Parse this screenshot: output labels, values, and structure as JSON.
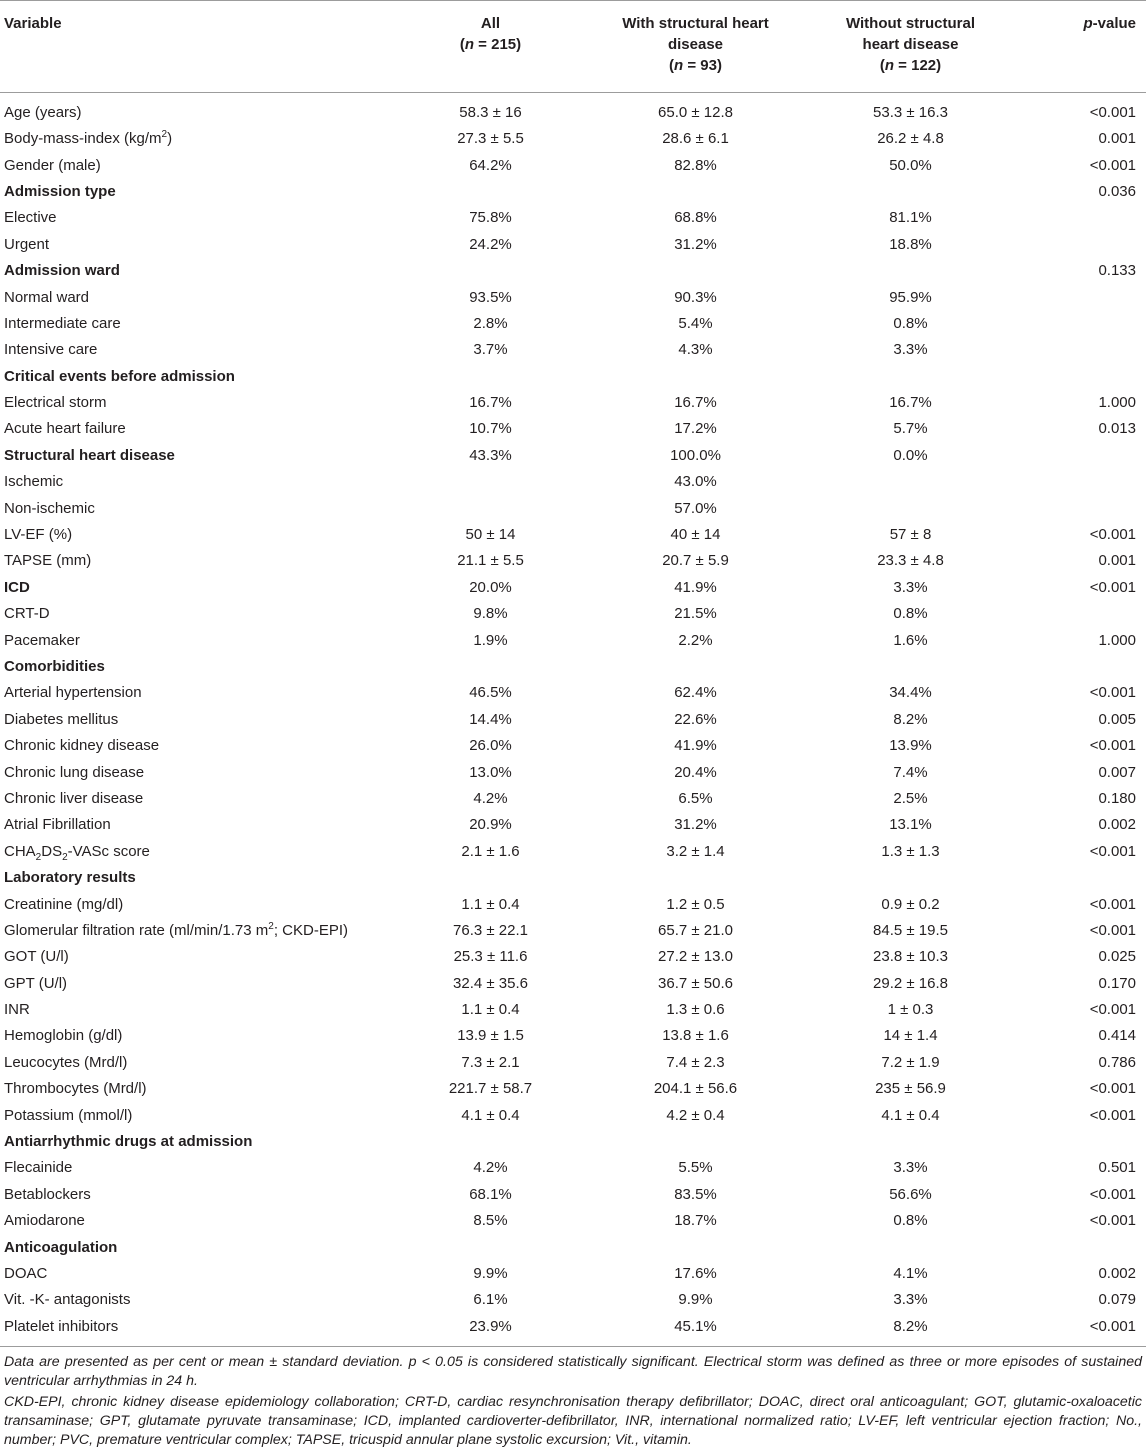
{
  "headers": {
    "variable": "Variable",
    "all_title": "All",
    "all_n": "(n = 215)",
    "with_title_1": "With structural heart",
    "with_title_2": "disease",
    "with_n": "(n = 93)",
    "without_title_1": "Without structural",
    "without_title_2": "heart disease",
    "without_n": "(n = 122)",
    "p_value": "p-value"
  },
  "rows": [
    {
      "type": "data",
      "label": "Age (years)",
      "all": "58.3 ± 16",
      "with": "65.0 ± 12.8",
      "without": "53.3 ± 16.3",
      "p": "<0.001"
    },
    {
      "type": "data",
      "label_html": "Body-mass-index (kg/m<sup>2</sup>)",
      "label": "Body-mass-index (kg/m2)",
      "all": "27.3 ± 5.5",
      "with": "28.6 ± 6.1",
      "without": "26.2 ± 4.8",
      "p": "0.001"
    },
    {
      "type": "data",
      "label": "Gender (male)",
      "all": "64.2%",
      "with": "82.8%",
      "without": "50.0%",
      "p": "<0.001"
    },
    {
      "type": "section",
      "label": "Admission type",
      "all": "",
      "with": "",
      "without": "",
      "p": "0.036"
    },
    {
      "type": "data",
      "label": "Elective",
      "all": "75.8%",
      "with": "68.8%",
      "without": "81.1%",
      "p": ""
    },
    {
      "type": "data",
      "label": "Urgent",
      "all": "24.2%",
      "with": "31.2%",
      "without": "18.8%",
      "p": ""
    },
    {
      "type": "section",
      "label": "Admission ward",
      "all": "",
      "with": "",
      "without": "",
      "p": "0.133"
    },
    {
      "type": "data",
      "label": "Normal ward",
      "all": "93.5%",
      "with": "90.3%",
      "without": "95.9%",
      "p": ""
    },
    {
      "type": "data",
      "label": "Intermediate care",
      "all": "2.8%",
      "with": "5.4%",
      "without": "0.8%",
      "p": ""
    },
    {
      "type": "data",
      "label": "Intensive care",
      "all": "3.7%",
      "with": "4.3%",
      "without": "3.3%",
      "p": ""
    },
    {
      "type": "section",
      "label": "Critical events before admission",
      "all": "",
      "with": "",
      "without": "",
      "p": ""
    },
    {
      "type": "data",
      "label": "Electrical storm",
      "all": "16.7%",
      "with": "16.7%",
      "without": "16.7%",
      "p": "1.000"
    },
    {
      "type": "data",
      "label": "Acute heart failure",
      "all": "10.7%",
      "with": "17.2%",
      "without": "5.7%",
      "p": "0.013"
    },
    {
      "type": "section",
      "label": "Structural heart disease",
      "all": "43.3%",
      "with": "100.0%",
      "without": "0.0%",
      "p": ""
    },
    {
      "type": "data",
      "label": "Ischemic",
      "all": "",
      "with": "43.0%",
      "without": "",
      "p": ""
    },
    {
      "type": "data",
      "label": "Non-ischemic",
      "all": "",
      "with": "57.0%",
      "without": "",
      "p": ""
    },
    {
      "type": "data",
      "label": "LV-EF (%)",
      "all": "50 ± 14",
      "with": "40 ± 14",
      "without": "57 ± 8",
      "p": "<0.001"
    },
    {
      "type": "data",
      "label": "TAPSE (mm)",
      "all": "21.1 ± 5.5",
      "with": "20.7 ± 5.9",
      "without": "23.3 ± 4.8",
      "p": "0.001"
    },
    {
      "type": "section",
      "label": "ICD",
      "all": "20.0%",
      "with": "41.9%",
      "without": "3.3%",
      "p": "<0.001"
    },
    {
      "type": "data",
      "label": "CRT-D",
      "all": "9.8%",
      "with": "21.5%",
      "without": "0.8%",
      "p": ""
    },
    {
      "type": "data",
      "label": "Pacemaker",
      "all": "1.9%",
      "with": "2.2%",
      "without": "1.6%",
      "p": "1.000"
    },
    {
      "type": "section",
      "label": "Comorbidities",
      "all": "",
      "with": "",
      "without": "",
      "p": ""
    },
    {
      "type": "data",
      "label": "Arterial hypertension",
      "all": "46.5%",
      "with": "62.4%",
      "without": "34.4%",
      "p": "<0.001"
    },
    {
      "type": "data",
      "label": "Diabetes mellitus",
      "all": "14.4%",
      "with": "22.6%",
      "without": "8.2%",
      "p": "0.005"
    },
    {
      "type": "data",
      "label": "Chronic kidney disease",
      "all": "26.0%",
      "with": "41.9%",
      "without": "13.9%",
      "p": "<0.001"
    },
    {
      "type": "data",
      "label": "Chronic lung disease",
      "all": "13.0%",
      "with": "20.4%",
      "without": "7.4%",
      "p": "0.007"
    },
    {
      "type": "data",
      "label": "Chronic liver disease",
      "all": "4.2%",
      "with": "6.5%",
      "without": "2.5%",
      "p": "0.180"
    },
    {
      "type": "data",
      "label": "Atrial Fibrillation",
      "all": "20.9%",
      "with": "31.2%",
      "without": "13.1%",
      "p": "0.002"
    },
    {
      "type": "data",
      "label_html": "CHA<sub>2</sub>DS<sub>2</sub>-VASc score",
      "label": "CHA2DS2-VASc score",
      "all": "2.1 ± 1.6",
      "with": "3.2 ± 1.4",
      "without": "1.3 ± 1.3",
      "p": "<0.001"
    },
    {
      "type": "section",
      "label": "Laboratory results",
      "all": "",
      "with": "",
      "without": "",
      "p": ""
    },
    {
      "type": "data",
      "label": "Creatinine (mg/dl)",
      "all": "1.1 ± 0.4",
      "with": "1.2 ± 0.5",
      "without": "0.9 ± 0.2",
      "p": "<0.001"
    },
    {
      "type": "data",
      "label_html": "Glomerular filtration rate (ml/min/1.73 m<sup>2</sup>; CKD-EPI)",
      "label": "Glomerular filtration rate (ml/min/1.73 m2; CKD-EPI)",
      "all": "76.3 ± 22.1",
      "with": "65.7 ± 21.0",
      "without": "84.5 ± 19.5",
      "p": "<0.001"
    },
    {
      "type": "data",
      "label": "GOT (U/l)",
      "all": "25.3 ± 11.6",
      "with": "27.2 ± 13.0",
      "without": "23.8 ± 10.3",
      "p": "0.025"
    },
    {
      "type": "data",
      "label": "GPT (U/l)",
      "all": "32.4 ± 35.6",
      "with": "36.7 ± 50.6",
      "without": "29.2 ± 16.8",
      "p": "0.170"
    },
    {
      "type": "data",
      "label": "INR",
      "all": "1.1 ± 0.4",
      "with": "1.3 ± 0.6",
      "without": "1 ± 0.3",
      "p": "<0.001"
    },
    {
      "type": "data",
      "label": "Hemoglobin (g/dl)",
      "all": "13.9 ± 1.5",
      "with": "13.8 ± 1.6",
      "without": "14 ± 1.4",
      "p": "0.414"
    },
    {
      "type": "data",
      "label": "Leucocytes (Mrd/l)",
      "all": "7.3 ± 2.1",
      "with": "7.4 ± 2.3",
      "without": "7.2 ± 1.9",
      "p": "0.786"
    },
    {
      "type": "data",
      "label": "Thrombocytes (Mrd/l)",
      "all": "221.7 ± 58.7",
      "with": "204.1 ± 56.6",
      "without": "235 ± 56.9",
      "p": "<0.001"
    },
    {
      "type": "data",
      "label": "Potassium (mmol/l)",
      "all": "4.1 ± 0.4",
      "with": "4.2 ± 0.4",
      "without": "4.1 ± 0.4",
      "p": "<0.001"
    },
    {
      "type": "section",
      "label": "Antiarrhythmic drugs at admission",
      "all": "",
      "with": "",
      "without": "",
      "p": ""
    },
    {
      "type": "data",
      "label": "Flecainide",
      "all": "4.2%",
      "with": "5.5%",
      "without": "3.3%",
      "p": "0.501"
    },
    {
      "type": "data",
      "label": "Betablockers",
      "all": "68.1%",
      "with": "83.5%",
      "without": "56.6%",
      "p": "<0.001"
    },
    {
      "type": "data",
      "label": "Amiodarone",
      "all": "8.5%",
      "with": "18.7%",
      "without": "0.8%",
      "p": "<0.001"
    },
    {
      "type": "section",
      "label": "Anticoagulation",
      "all": "",
      "with": "",
      "without": "",
      "p": ""
    },
    {
      "type": "data",
      "label": "DOAC",
      "all": "9.9%",
      "with": "17.6%",
      "without": "4.1%",
      "p": "0.002"
    },
    {
      "type": "data",
      "label": "Vit. -K- antagonists",
      "all": "6.1%",
      "with": "9.9%",
      "without": "3.3%",
      "p": "0.079"
    },
    {
      "type": "data",
      "label": "Platelet inhibitors",
      "all": "23.9%",
      "with": "45.1%",
      "without": "8.2%",
      "p": "<0.001"
    }
  ],
  "footnotes": [
    "Data are presented as per cent or mean ± standard deviation. p < 0.05 is considered statistically significant. Electrical storm was defined as three or more episodes of sustained ventricular arrhythmias in 24 h.",
    "CKD-EPI, chronic kidney disease epidemiology collaboration; CRT-D, cardiac resynchronisation therapy defibrillator; DOAC, direct oral anticoagulant; GOT, glutamic-oxaloacetic transaminase; GPT, glutamate pyruvate transaminase; ICD, implanted cardioverter-defibrillator, INR, international normalized ratio; LV-EF, left ventricular ejection fraction; No., number; PVC, premature ventricular complex; TAPSE, tricuspid annular plane systolic excursion; Vit., vitamin."
  ]
}
